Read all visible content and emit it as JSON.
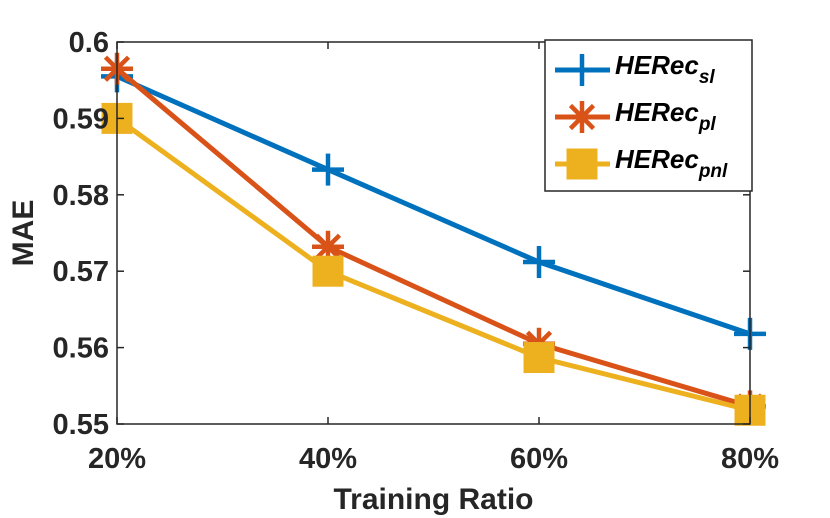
{
  "chart_data": {
    "type": "line",
    "title": "",
    "xlabel": "Training Ratio",
    "ylabel": "MAE",
    "categories": [
      "20%",
      "40%",
      "60%",
      "80%"
    ],
    "ylim": [
      0.55,
      0.6
    ],
    "yticks": [
      "0.55",
      "0.56",
      "0.57",
      "0.58",
      "0.59",
      "0.6"
    ],
    "grid": false,
    "legend_position": "top-right",
    "series": [
      {
        "name": "HERec",
        "subscript": "sl",
        "color": "#0072BD",
        "marker": "plus",
        "values": [
          0.5955,
          0.5833,
          0.5712,
          0.5618
        ]
      },
      {
        "name": "HERec",
        "subscript": "pl",
        "color": "#D95319",
        "marker": "asterisk",
        "values": [
          0.5965,
          0.5732,
          0.5605,
          0.5523
        ]
      },
      {
        "name": "HERec",
        "subscript": "pnl",
        "color": "#EDB120",
        "marker": "square",
        "values": [
          0.59,
          0.57,
          0.5587,
          0.5518
        ]
      }
    ]
  }
}
